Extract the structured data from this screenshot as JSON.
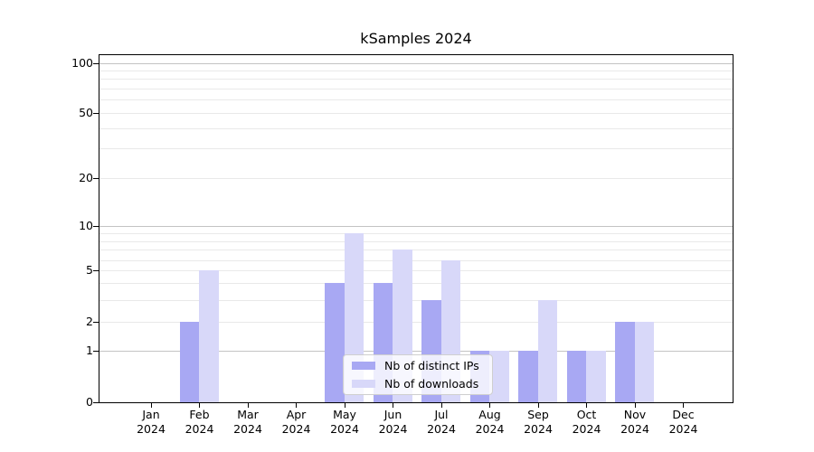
{
  "chart_data": {
    "type": "bar",
    "title": "kSamples 2024",
    "categories": [
      "Jan 2024",
      "Feb 2024",
      "Mar 2024",
      "Apr 2024",
      "May 2024",
      "Jun 2024",
      "Jul 2024",
      "Aug 2024",
      "Sep 2024",
      "Oct 2024",
      "Nov 2024",
      "Dec 2024"
    ],
    "series": [
      {
        "name": "Nb of distinct IPs",
        "color": "#a8a8f3",
        "values": [
          0,
          2,
          0,
          0,
          4,
          4,
          3,
          1,
          1,
          1,
          2,
          0
        ]
      },
      {
        "name": "Nb of downloads",
        "color": "#d8d8f9",
        "values": [
          0,
          5,
          0,
          0,
          9,
          7,
          6,
          1,
          3,
          1,
          2,
          0
        ]
      }
    ],
    "xlabel": "",
    "ylabel": "",
    "y_axis": {
      "ticks": [
        0,
        1,
        2,
        5,
        10,
        20,
        50,
        100
      ],
      "scale": "log-like",
      "ylim": [
        0,
        110
      ]
    },
    "grid": true,
    "legend_position": "inside-lower-center"
  },
  "colors": {
    "major_grid": "#c3c3c3",
    "minor_grid": "#e9e9e9",
    "axis": "#000000",
    "background": "#ffffff"
  }
}
